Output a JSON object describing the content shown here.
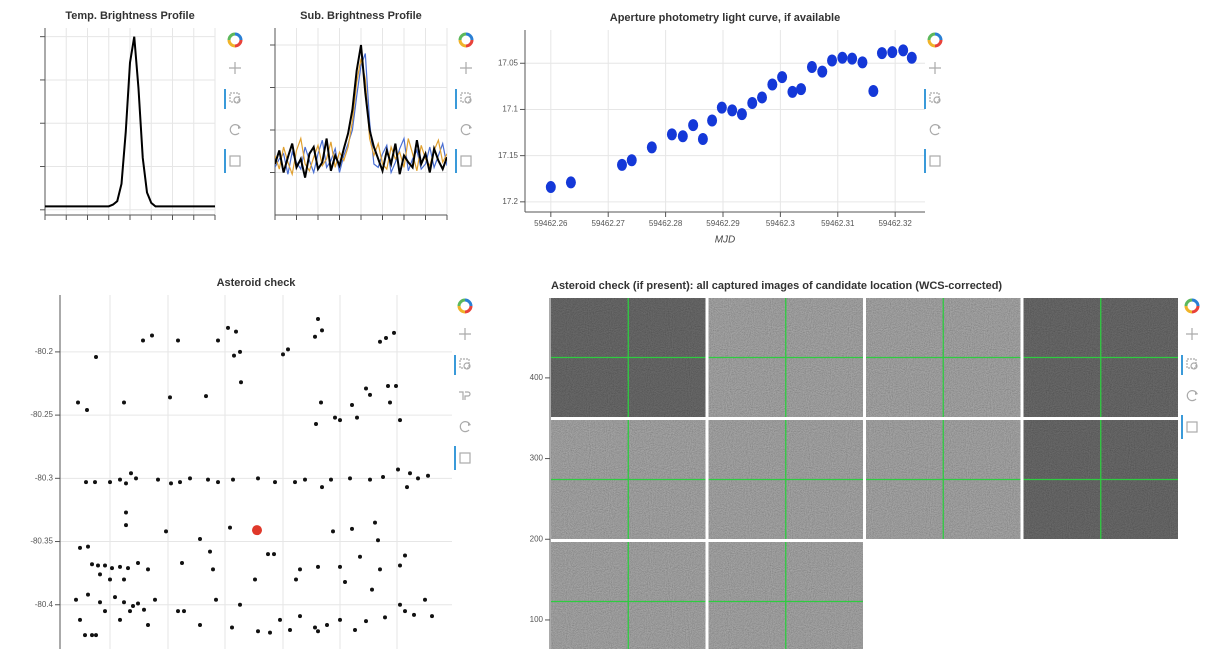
{
  "chart_data": [
    {
      "type": "line",
      "title": "Temp. Brightness Profile",
      "tick_labels": false,
      "grid": true,
      "x": [
        0,
        1,
        2,
        3,
        4,
        5,
        6,
        7,
        8,
        9,
        10,
        11,
        12,
        13,
        14,
        15,
        16,
        17,
        18,
        19,
        20,
        21,
        22,
        23,
        24,
        25,
        26,
        27,
        28,
        29,
        30,
        31,
        32,
        33,
        34,
        35,
        36,
        37,
        38,
        39,
        40
      ],
      "xlim": [
        0,
        40
      ],
      "ylim": [
        -0.03,
        1.05
      ],
      "xticks": [
        0,
        5,
        10,
        15,
        20,
        25,
        30,
        35,
        40
      ],
      "yticks": [
        0,
        0.25,
        0.5,
        0.75,
        1
      ],
      "series": [
        {
          "color": "#000000",
          "values": [
            0.02,
            0.02,
            0.02,
            0.02,
            0.02,
            0.02,
            0.02,
            0.02,
            0.02,
            0.02,
            0.02,
            0.02,
            0.02,
            0.02,
            0.02,
            0.02,
            0.03,
            0.05,
            0.15,
            0.45,
            0.85,
            1.0,
            0.7,
            0.3,
            0.1,
            0.04,
            0.02,
            0.02,
            0.02,
            0.02,
            0.02,
            0.02,
            0.02,
            0.02,
            0.02,
            0.02,
            0.02,
            0.02,
            0.02,
            0.02,
            0.02
          ]
        }
      ]
    },
    {
      "type": "line",
      "title": "Sub. Brightness Profile",
      "tick_labels": false,
      "grid": true,
      "x": [
        0,
        1,
        2,
        3,
        4,
        5,
        6,
        7,
        8,
        9,
        10,
        11,
        12,
        13,
        14,
        15,
        16,
        17,
        18,
        19,
        20,
        21,
        22,
        23,
        24,
        25,
        26,
        27,
        28,
        29,
        30,
        31,
        32,
        33,
        34,
        35,
        36,
        37,
        38,
        39,
        40
      ],
      "xlim": [
        0,
        40
      ],
      "ylim": [
        0,
        1.1
      ],
      "xticks": [
        0,
        5,
        10,
        15,
        20,
        25,
        30,
        35,
        40
      ],
      "yticks": [
        0.25,
        0.5,
        0.75,
        1
      ],
      "series": [
        {
          "color": "#4a6fd4",
          "values": [
            0.28,
            0.33,
            0.36,
            0.24,
            0.37,
            0.31,
            0.27,
            0.4,
            0.32,
            0.25,
            0.36,
            0.44,
            0.28,
            0.32,
            0.39,
            0.25,
            0.35,
            0.42,
            0.5,
            0.7,
            0.88,
            0.95,
            0.55,
            0.3,
            0.28,
            0.36,
            0.41,
            0.25,
            0.31,
            0.39,
            0.45,
            0.26,
            0.33,
            0.38,
            0.27,
            0.3,
            0.4,
            0.28,
            0.35,
            0.42,
            0.29
          ]
        },
        {
          "color": "#e0a030",
          "values": [
            0.35,
            0.27,
            0.4,
            0.31,
            0.24,
            0.38,
            0.45,
            0.3,
            0.26,
            0.34,
            0.41,
            0.29,
            0.33,
            0.43,
            0.28,
            0.37,
            0.32,
            0.4,
            0.55,
            0.78,
            0.92,
            0.8,
            0.45,
            0.35,
            0.42,
            0.3,
            0.27,
            0.4,
            0.33,
            0.37,
            0.28,
            0.45,
            0.36,
            0.26,
            0.41,
            0.33,
            0.29,
            0.38,
            0.44,
            0.31,
            0.36
          ]
        },
        {
          "color": "#000000",
          "values": [
            0.3,
            0.38,
            0.25,
            0.34,
            0.42,
            0.28,
            0.33,
            0.22,
            0.36,
            0.4,
            0.27,
            0.31,
            0.45,
            0.26,
            0.35,
            0.29,
            0.39,
            0.48,
            0.62,
            0.85,
            1.0,
            0.72,
            0.5,
            0.4,
            0.33,
            0.26,
            0.38,
            0.3,
            0.42,
            0.24,
            0.35,
            0.31,
            0.28,
            0.44,
            0.3,
            0.36,
            0.25,
            0.39,
            0.32,
            0.27,
            0.34
          ]
        }
      ]
    },
    {
      "type": "scatter",
      "title": "Aperture photometry light curve, if available",
      "xlabel": "MJD",
      "grid": true,
      "marker": "ellipse",
      "x": [
        59462.26,
        59462.2635,
        59462.2724,
        59462.2741,
        59462.2776,
        59462.2811,
        59462.283,
        59462.2848,
        59462.2865,
        59462.2881,
        59462.2898,
        59462.2916,
        59462.2933,
        59462.2951,
        59462.2968,
        59462.2986,
        59462.3003,
        59462.3021,
        59462.3036,
        59462.3055,
        59462.3073,
        59462.309,
        59462.3108,
        59462.3125,
        59462.3143,
        59462.3162,
        59462.3177,
        59462.3195,
        59462.3214,
        59462.3229
      ],
      "xlim": [
        59462.2555,
        59462.3252
      ],
      "ylim": [
        17.211,
        17.014
      ],
      "xticks": [
        59462.26,
        59462.27,
        59462.28,
        59462.29,
        59462.3,
        59462.31,
        59462.32
      ],
      "yticks": [
        17.05,
        17.1,
        17.15,
        17.2
      ],
      "series": [
        {
          "color": "#1438d8",
          "values": [
            17.184,
            17.179,
            17.16,
            17.155,
            17.141,
            17.127,
            17.129,
            17.117,
            17.132,
            17.112,
            17.098,
            17.101,
            17.105,
            17.093,
            17.087,
            17.073,
            17.065,
            17.081,
            17.078,
            17.054,
            17.059,
            17.047,
            17.044,
            17.045,
            17.049,
            17.08,
            17.039,
            17.038,
            17.036,
            17.044
          ]
        }
      ]
    },
    {
      "type": "scatter",
      "title": "Asteroid check",
      "grid": true,
      "marker": "dot",
      "xtick_labels": false,
      "xlim": [
        0,
        392
      ],
      "ylim": [
        -80.435,
        -80.155
      ],
      "xticks": [
        50,
        108,
        165,
        223,
        280,
        337
      ],
      "yticks": [
        -80.2,
        -80.25,
        -80.3,
        -80.35,
        -80.4
      ],
      "series": [
        {
          "color": "#111111",
          "x": [
            83,
            92,
            118,
            158,
            168,
            176,
            180,
            174,
            223,
            228,
            258,
            262,
            255,
            320,
            326,
            334,
            36,
            18,
            27,
            64,
            110,
            146,
            181,
            261,
            275,
            280,
            292,
            306,
            310,
            328,
            336,
            330,
            340,
            256,
            297,
            26,
            35,
            50,
            60,
            66,
            71,
            76,
            98,
            111,
            120,
            130,
            148,
            158,
            173,
            198,
            215,
            235,
            245,
            262,
            271,
            290,
            310,
            323,
            338,
            350,
            358,
            368,
            347,
            66,
            66,
            106,
            140,
            170,
            208,
            214,
            273,
            292,
            315,
            318,
            20,
            28,
            32,
            38,
            45,
            52,
            60,
            68,
            78,
            40,
            50,
            64,
            88,
            122,
            150,
            153,
            195,
            236,
            258,
            280,
            300,
            320,
            340,
            345,
            312,
            285,
            240,
            16,
            28,
            40,
            55,
            64,
            73,
            78,
            84,
            95,
            118,
            124,
            156,
            180,
            198,
            210,
            230,
            240,
            255,
            258,
            267,
            280,
            295,
            306,
            325,
            340,
            345,
            354,
            365,
            372,
            25,
            32,
            36,
            20,
            45,
            60,
            70,
            88,
            140,
            172,
            220
          ],
          "values": [
            -80.191,
            -80.187,
            -80.191,
            -80.191,
            -80.181,
            -80.184,
            -80.2,
            -80.203,
            -80.202,
            -80.198,
            -80.174,
            -80.183,
            -80.188,
            -80.192,
            -80.189,
            -80.185,
            -80.204,
            -80.24,
            -80.246,
            -80.24,
            -80.236,
            -80.235,
            -80.224,
            -80.24,
            -80.252,
            -80.254,
            -80.242,
            -80.229,
            -80.234,
            -80.227,
            -80.227,
            -80.24,
            -80.254,
            -80.257,
            -80.252,
            -80.303,
            -80.303,
            -80.303,
            -80.301,
            -80.304,
            -80.296,
            -80.3,
            -80.301,
            -80.304,
            -80.303,
            -80.3,
            -80.301,
            -80.303,
            -80.301,
            -80.3,
            -80.303,
            -80.303,
            -80.301,
            -80.307,
            -80.301,
            -80.3,
            -80.301,
            -80.299,
            -80.293,
            -80.296,
            -80.3,
            -80.298,
            -80.307,
            -80.327,
            -80.337,
            -80.342,
            -80.348,
            -80.339,
            -80.36,
            -80.36,
            -80.342,
            -80.34,
            -80.335,
            -80.349,
            -80.355,
            -80.354,
            -80.368,
            -80.369,
            -80.369,
            -80.371,
            -80.37,
            -80.371,
            -80.367,
            -80.376,
            -80.38,
            -80.38,
            -80.372,
            -80.367,
            -80.358,
            -80.372,
            -80.38,
            -80.38,
            -80.37,
            -80.37,
            -80.362,
            -80.372,
            -80.369,
            -80.361,
            -80.388,
            -80.382,
            -80.372,
            -80.396,
            -80.392,
            -80.398,
            -80.394,
            -80.398,
            -80.401,
            -80.399,
            -80.404,
            -80.396,
            -80.405,
            -80.405,
            -80.396,
            -80.4,
            -80.421,
            -80.422,
            -80.42,
            -80.409,
            -80.418,
            -80.421,
            -80.416,
            -80.412,
            -80.42,
            -80.413,
            -80.41,
            -80.4,
            -80.405,
            -80.408,
            -80.396,
            -80.409,
            -80.424,
            -80.424,
            -80.424,
            -80.412,
            -80.405,
            -80.412,
            -80.405,
            -80.416,
            -80.416,
            -80.418,
            -80.412
          ]
        },
        {
          "color": "#e0382a",
          "x": [
            197
          ],
          "values": [
            -80.341
          ]
        }
      ]
    },
    {
      "type": "image",
      "title": "Asteroid check (if present): all captured images of candidate location (WCS-corrected)",
      "ylim": [
        64,
        499
      ],
      "yticks": [
        100,
        200,
        300,
        400
      ]
    }
  ]
}
